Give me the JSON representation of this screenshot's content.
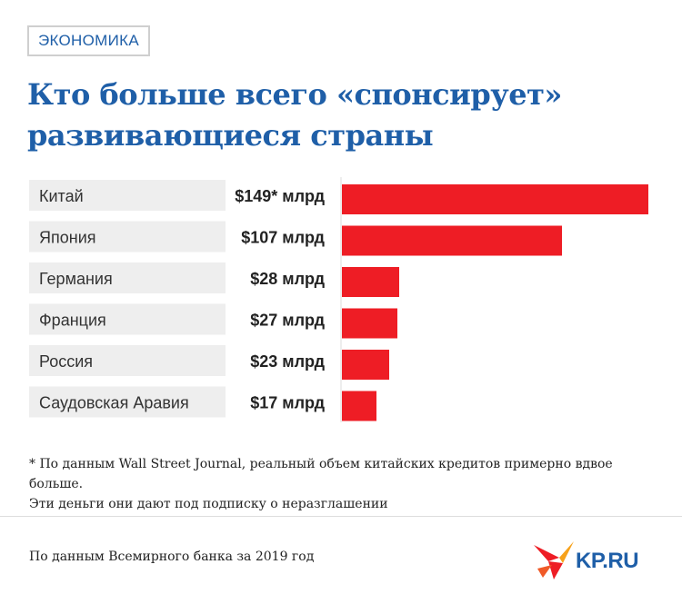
{
  "header": {
    "tag": "ЭКОНОМИКА",
    "title": "Кто больше всего «спонсирует» развивающиеся страны"
  },
  "chart_data": {
    "type": "bar",
    "orientation": "horizontal",
    "categories": [
      "Китай",
      "Япония",
      "Германия",
      "Франция",
      "Россия",
      "Саудовская Аравия"
    ],
    "values": [
      149,
      107,
      28,
      27,
      23,
      17
    ],
    "value_labels": [
      "$149* млрд",
      "$107 млрд",
      "$28 млрд",
      "$27 млрд",
      "$23 млрд",
      "$17 млрд"
    ],
    "title": "Кто больше всего «спонсирует» развивающиеся страны",
    "xlabel": "",
    "ylabel": "",
    "xlim": [
      0,
      149
    ],
    "grid": false,
    "bar_color": "#ee1d25"
  },
  "footnote": {
    "line1": "* По данным Wall Street Journal, реальный объем китайских кредитов примерно вдвое больше.",
    "line2": "Эти деньги они дают под подписку о неразглашении"
  },
  "source": "По данным Всемирного банка за 2019 год",
  "logo": {
    "text": "KP.RU",
    "icon": "bird-logo-icon"
  },
  "colors": {
    "brand_blue": "#1f5fa8",
    "bar_red": "#ee1d25"
  }
}
